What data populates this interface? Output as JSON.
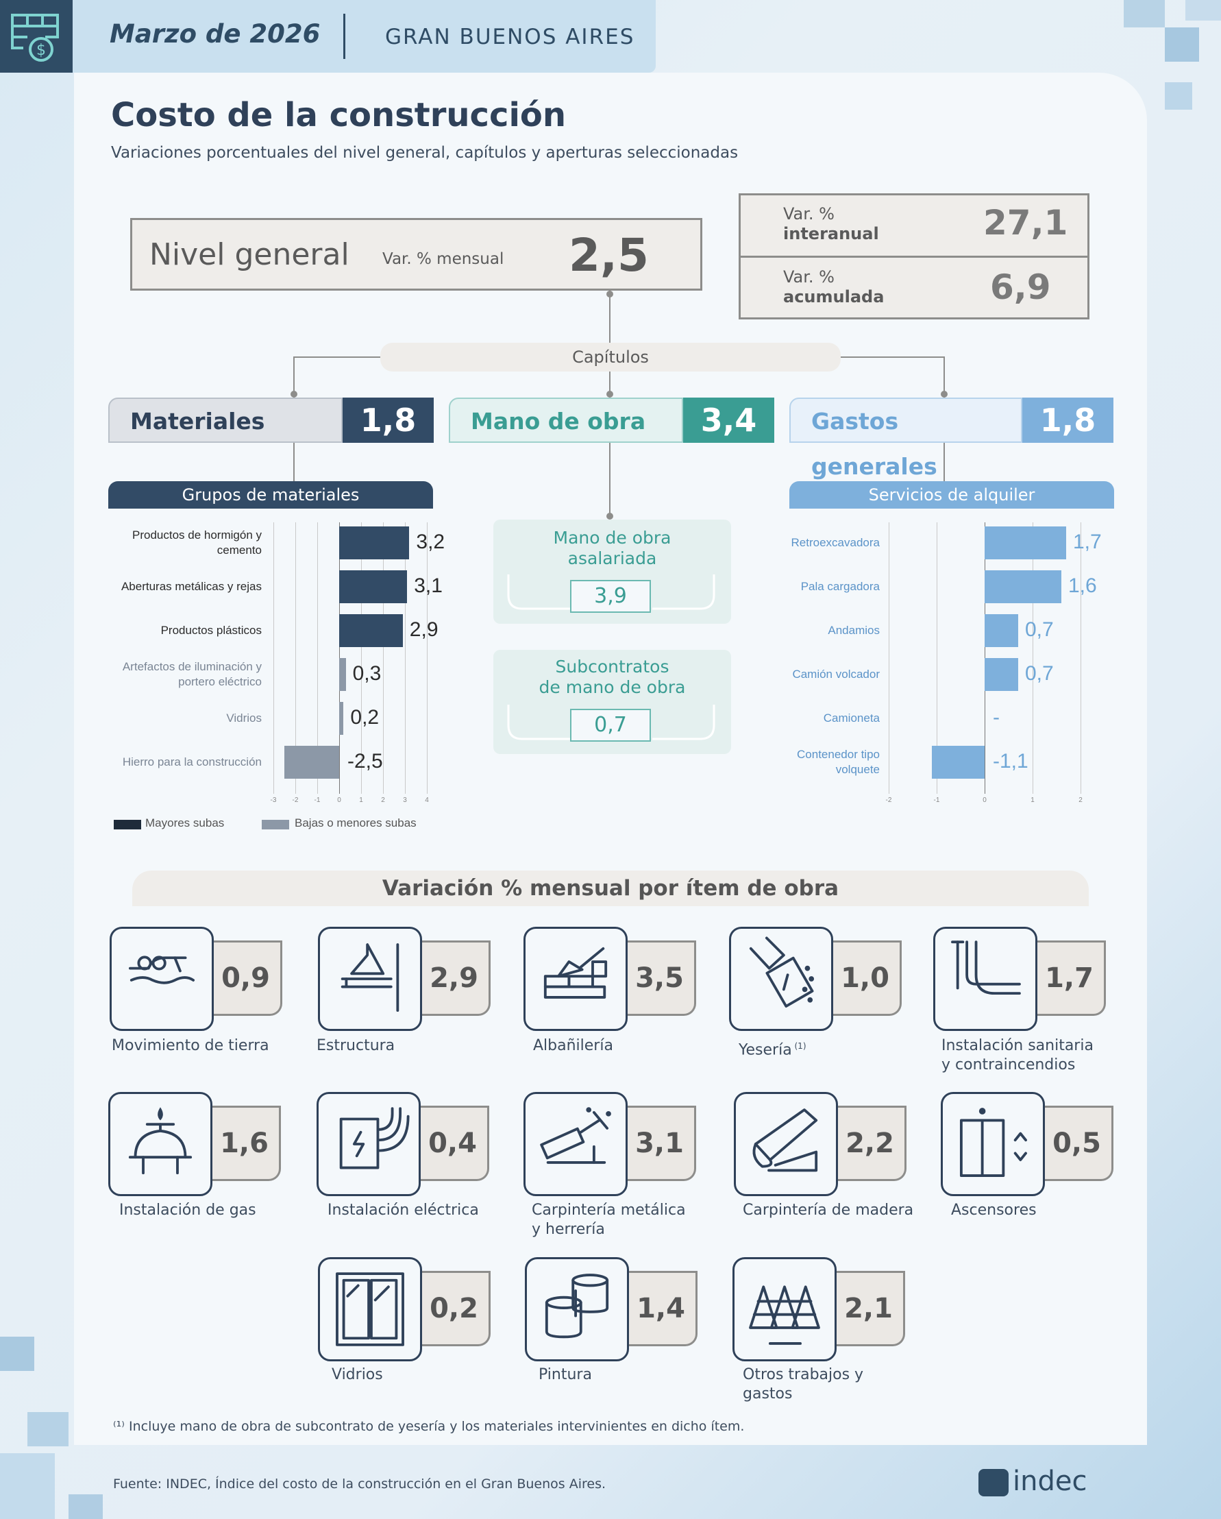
{
  "header": {
    "date": "Marzo de 2026",
    "region": "GRAN BUENOS AIRES"
  },
  "title": "Costo de la construcción",
  "subtitle": "Variaciones porcentuales del nivel general, capítulos y aperturas seleccionadas",
  "nivel_general": {
    "label": "Nivel general",
    "sublabel": "Var. % mensual",
    "value": "2,5"
  },
  "interanual": {
    "line1": "Var. %",
    "line2": "interanual",
    "value": "27,1"
  },
  "acumulada": {
    "line1": "Var. %",
    "line2": "acumulada",
    "value": "6,9"
  },
  "capitulos_label": "Capítulos",
  "chapters": [
    {
      "name": "Materiales",
      "value": "1,8"
    },
    {
      "name": "Mano de obra",
      "value": "3,4"
    },
    {
      "name": "Gastos generales",
      "value": "1,8"
    }
  ],
  "mano_de_obra": [
    {
      "label_line1": "Mano de obra",
      "label_line2": "asalariada",
      "value": "3,9"
    },
    {
      "label_line1": "Subcontratos",
      "label_line2": "de mano de obra",
      "value": "0,7"
    }
  ],
  "legend": {
    "up": "Mayores subas",
    "down": "Bajas o menores subas"
  },
  "colors": {
    "navy": "#324b66",
    "gray_bar": "#8c98a7",
    "teal": "#3a9d93",
    "light_blue": "#7eb0dc"
  },
  "chart_data": [
    {
      "type": "bar",
      "orientation": "horizontal",
      "title": "Grupos de materiales",
      "categories": [
        "Productos de hormigón y cemento",
        "Aberturas metálicas y rejas",
        "Productos plásticos",
        "Artefactos de iluminación y portero eléctrico",
        "Vidrios",
        "Hierro para la construcción"
      ],
      "category_lines": [
        [
          "Productos de hormigón y",
          "cemento"
        ],
        [
          "Aberturas metálicas y rejas"
        ],
        [
          "Productos plásticos"
        ],
        [
          "Artefactos de iluminación y",
          "portero eléctrico"
        ],
        [
          "Vidrios"
        ],
        [
          "Hierro para la construcción"
        ]
      ],
      "values": [
        3.2,
        3.1,
        2.9,
        0.3,
        0.2,
        -2.5
      ],
      "value_labels": [
        "3,2",
        "3,1",
        "2,9",
        "0,3",
        "0,2",
        "-2,5"
      ],
      "group": [
        "Mayores subas",
        "Mayores subas",
        "Mayores subas",
        "Bajas o menores subas",
        "Bajas o menores subas",
        "Bajas o menores subas"
      ],
      "xlim": [
        -3,
        4
      ],
      "xticks": [
        "-3",
        "-2",
        "-1",
        "0",
        "1",
        "2",
        "3",
        "4"
      ],
      "grid": true
    },
    {
      "type": "bar",
      "orientation": "horizontal",
      "title": "Servicios de alquiler",
      "categories": [
        "Retroexcavadora",
        "Pala cargadora",
        "Andamios",
        "Camión volcador",
        "Camioneta",
        "Contenedor tipo volquete"
      ],
      "category_lines": [
        [
          "Retroexcavadora"
        ],
        [
          "Pala cargadora"
        ],
        [
          "Andamios"
        ],
        [
          "Camión volcador"
        ],
        [
          "Camioneta"
        ],
        [
          "Contenedor tipo",
          "volquete"
        ]
      ],
      "values": [
        1.7,
        1.6,
        0.7,
        0.7,
        null,
        -1.1
      ],
      "value_labels": [
        "1,7",
        "1,6",
        "0,7",
        "0,7",
        "-",
        "-1,1"
      ],
      "xlim": [
        -2,
        2
      ],
      "xticks": [
        "-2",
        "-1",
        "0",
        "1",
        "2"
      ],
      "grid": true
    }
  ],
  "items_title": "Variación % mensual por ítem de obra",
  "items": [
    {
      "name_lines": [
        "Movimiento de tierra"
      ],
      "value": "0,9",
      "icon": "wheelbarrow-icon"
    },
    {
      "name_lines": [
        "Estructura"
      ],
      "value": "2,9",
      "icon": "crane-beam-icon"
    },
    {
      "name_lines": [
        "Albañilería"
      ],
      "value": "3,5",
      "icon": "trowel-bricks-icon"
    },
    {
      "name_lines": [
        "Yesería"
      ],
      "sup": "(1)",
      "value": "1,0",
      "icon": "plaster-bag-icon"
    },
    {
      "name_lines": [
        "Instalación sanitaria",
        "y contraincendios"
      ],
      "value": "1,7",
      "icon": "pipes-icon"
    },
    {
      "name_lines": [
        "Instalación de gas"
      ],
      "value": "1,6",
      "icon": "gas-burner-icon"
    },
    {
      "name_lines": [
        "Instalación eléctrica"
      ],
      "value": "0,4",
      "icon": "electric-panel-icon"
    },
    {
      "name_lines": [
        "Carpintería metálica",
        "y herrería"
      ],
      "value": "3,1",
      "icon": "welding-torch-icon"
    },
    {
      "name_lines": [
        "Carpintería de madera"
      ],
      "value": "2,2",
      "icon": "saw-icon"
    },
    {
      "name_lines": [
        "Ascensores"
      ],
      "value": "0,5",
      "icon": "elevator-icon"
    },
    {
      "name_lines": [
        "Vidrios"
      ],
      "value": "0,2",
      "icon": "window-glass-icon"
    },
    {
      "name_lines": [
        "Pintura"
      ],
      "value": "1,4",
      "icon": "paint-cans-icon"
    },
    {
      "name_lines": [
        "Otros trabajos y",
        "gastos"
      ],
      "value": "2,1",
      "icon": "cones-icon"
    }
  ],
  "footnote": "⁽¹⁾ Incluye mano de obra de subcontrato de yesería y los materiales intervinientes en dicho ítem.",
  "source": "Fuente: INDEC, Índice del costo de la construcción en el Gran Buenos Aires.",
  "brand": "indec"
}
